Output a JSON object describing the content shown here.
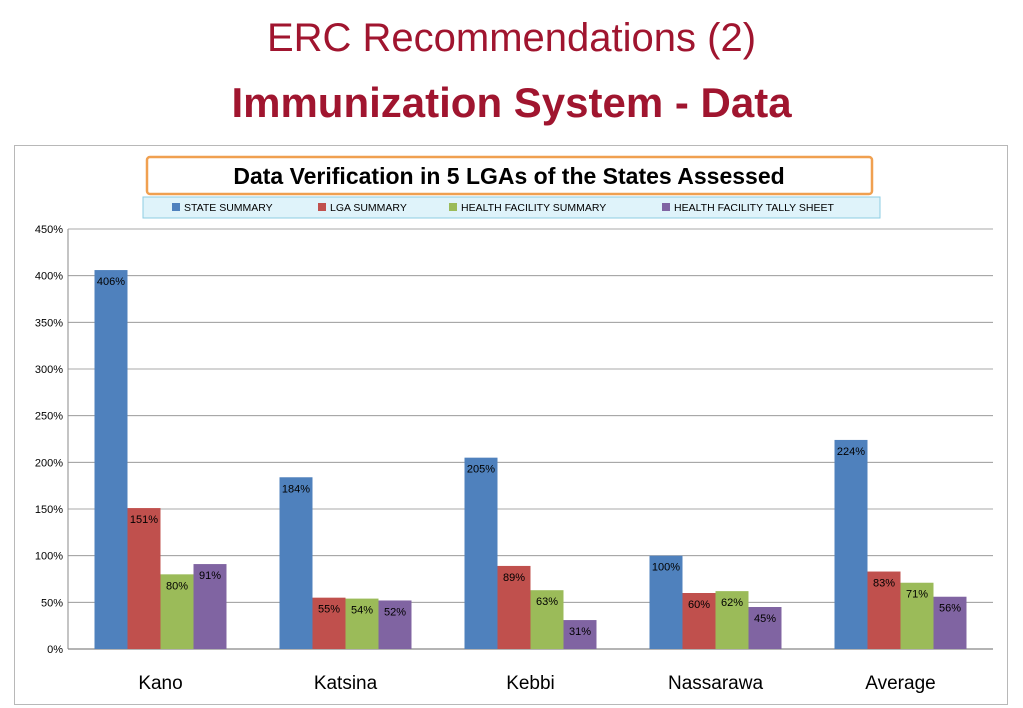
{
  "slide": {
    "title": "ERC Recommendations (2)",
    "subtitle": "Immunization System - Data"
  },
  "chart_data": {
    "type": "bar",
    "title": "Data Verification in 5 LGAs of the States Assessed",
    "categories": [
      "Kano",
      "Katsina",
      "Kebbi",
      "Nassarawa",
      "Average"
    ],
    "series": [
      {
        "name": "STATE SUMMARY",
        "color": "#4f81bd",
        "values": [
          406,
          184,
          205,
          100,
          224
        ]
      },
      {
        "name": "LGA SUMMARY",
        "color": "#c0504d",
        "values": [
          151,
          55,
          89,
          60,
          83
        ]
      },
      {
        "name": "HEALTH FACILITY SUMMARY",
        "color": "#9bbb59",
        "values": [
          80,
          54,
          63,
          62,
          71
        ]
      },
      {
        "name": "HEALTH FACILITY TALLY SHEET",
        "color": "#8064a2",
        "values": [
          91,
          52,
          31,
          45,
          56
        ]
      }
    ],
    "value_suffix": "%",
    "ylim": [
      0,
      450
    ],
    "yticks": [
      "0%",
      "50%",
      "100%",
      "150%",
      "200%",
      "250%",
      "300%",
      "350%",
      "400%",
      "450%"
    ],
    "xlabel": "",
    "ylabel": "",
    "grid": true,
    "legend_position": "top"
  }
}
